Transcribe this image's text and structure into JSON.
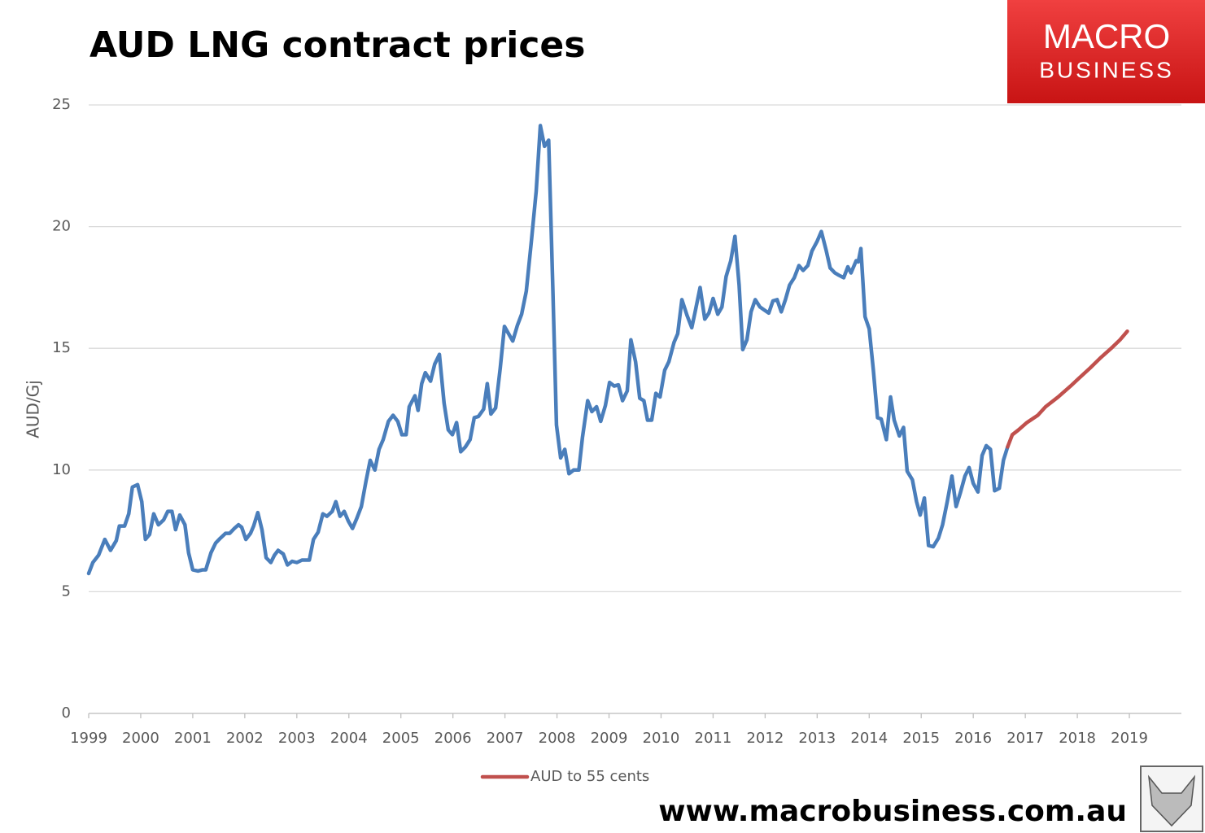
{
  "chart_data": {
    "type": "line",
    "title": "AUD LNG contract prices",
    "y_label": "AUD/Gj",
    "xlim": [
      1999,
      2020
    ],
    "xticks": [
      1999,
      2000,
      2001,
      2002,
      2003,
      2004,
      2005,
      2006,
      2007,
      2008,
      2009,
      2010,
      2011,
      2012,
      2013,
      2014,
      2015,
      2016,
      2017,
      2018,
      2019
    ],
    "ylim": [
      0,
      25
    ],
    "yticks": [
      0,
      5,
      10,
      15,
      20,
      25
    ],
    "grid": true,
    "legend": "bottom",
    "series": [
      {
        "color": "#4a7ebb",
        "x": [
          1999.0,
          1999.08,
          1999.19,
          1999.31,
          1999.42,
          1999.53,
          1999.59,
          1999.69,
          1999.77,
          1999.84,
          1999.94,
          2000.02,
          2000.09,
          2000.17,
          2000.25,
          2000.34,
          2000.44,
          2000.52,
          2000.6,
          2000.67,
          2000.75,
          2000.85,
          2000.92,
          2001.0,
          2001.1,
          2001.19,
          2001.25,
          2001.35,
          2001.44,
          2001.53,
          2001.63,
          2001.71,
          2001.8,
          2001.88,
          2001.94,
          2002.02,
          2002.11,
          2002.17,
          2002.25,
          2002.33,
          2002.41,
          2002.5,
          2002.57,
          2002.64,
          2002.74,
          2002.82,
          2002.91,
          2003.0,
          2003.1,
          2003.24,
          2003.32,
          2003.41,
          2003.5,
          2003.58,
          2003.68,
          2003.75,
          2003.83,
          2003.91,
          2003.99,
          2004.07,
          2004.15,
          2004.24,
          2004.33,
          2004.41,
          2004.5,
          2004.58,
          2004.66,
          2004.76,
          2004.85,
          2004.94,
          2005.02,
          2005.1,
          2005.16,
          2005.27,
          2005.33,
          2005.4,
          2005.47,
          2005.57,
          2005.65,
          2005.74,
          2005.83,
          2005.91,
          2005.99,
          2006.07,
          2006.15,
          2006.24,
          2006.33,
          2006.41,
          2006.49,
          2006.59,
          2006.66,
          2006.73,
          2006.82,
          2006.91,
          2006.99,
          2007.07,
          2007.15,
          2007.24,
          2007.32,
          2007.41,
          2007.51,
          2007.6,
          2007.68,
          2007.76,
          2007.84,
          2007.92,
          2007.99,
          2008.07,
          2008.15,
          2008.23,
          2008.32,
          2008.42,
          2008.49,
          2008.59,
          2008.67,
          2008.76,
          2008.84,
          2008.93,
          2009.01,
          2009.1,
          2009.18,
          2009.26,
          2009.35,
          2009.42,
          2009.51,
          2009.59,
          2009.67,
          2009.74,
          2009.82,
          2009.9,
          2009.98,
          2010.07,
          2010.15,
          2010.25,
          2010.32,
          2010.4,
          2010.5,
          2010.59,
          2010.65,
          2010.75,
          2010.84,
          2010.92,
          2011.0,
          2011.09,
          2011.17,
          2011.25,
          2011.34,
          2011.42,
          2011.5,
          2011.57,
          2011.65,
          2011.73,
          2011.81,
          2011.9,
          2012.0,
          2012.07,
          2012.15,
          2012.23,
          2012.31,
          2012.39,
          2012.47,
          2012.56,
          2012.65,
          2012.73,
          2012.82,
          2012.9,
          2013.0,
          2013.08,
          2013.17,
          2013.25,
          2013.34,
          2013.42,
          2013.51,
          2013.59,
          2013.65,
          2013.75,
          2013.79,
          2013.84,
          2013.92,
          2014.0,
          2014.08,
          2014.16,
          2014.23,
          2014.33,
          2014.41,
          2014.48,
          2014.58,
          2014.66,
          2014.73,
          2014.83,
          2014.91,
          2014.98,
          2015.06,
          2015.14,
          2015.23,
          2015.33,
          2015.41,
          2015.5,
          2015.59,
          2015.67,
          2015.75,
          2015.84,
          2015.92,
          2016.0,
          2016.09,
          2016.17,
          2016.25,
          2016.33,
          2016.41,
          2016.5,
          2016.58,
          2016.66
        ],
        "values": [
          5.75,
          6.2,
          6.5,
          7.15,
          6.7,
          7.1,
          7.7,
          7.7,
          8.2,
          9.3,
          9.4,
          8.7,
          7.15,
          7.35,
          8.2,
          7.75,
          7.95,
          8.3,
          8.3,
          7.55,
          8.15,
          7.75,
          6.6,
          5.9,
          5.85,
          5.9,
          5.9,
          6.6,
          7.0,
          7.2,
          7.4,
          7.4,
          7.6,
          7.75,
          7.65,
          7.15,
          7.4,
          7.7,
          8.25,
          7.55,
          6.4,
          6.2,
          6.5,
          6.7,
          6.55,
          6.1,
          6.25,
          6.2,
          6.3,
          6.3,
          7.15,
          7.45,
          8.2,
          8.1,
          8.3,
          8.7,
          8.1,
          8.3,
          7.9,
          7.6,
          8.0,
          8.5,
          9.55,
          10.4,
          10.0,
          10.85,
          11.25,
          12.0,
          12.25,
          12.0,
          11.45,
          11.45,
          12.6,
          13.05,
          12.45,
          13.55,
          14.0,
          13.65,
          14.35,
          14.75,
          12.75,
          11.65,
          11.45,
          11.95,
          10.75,
          10.95,
          11.25,
          12.15,
          12.2,
          12.5,
          13.55,
          12.3,
          12.55,
          14.2,
          15.9,
          15.6,
          15.3,
          15.95,
          16.4,
          17.35,
          19.45,
          21.45,
          24.15,
          23.3,
          23.55,
          17.45,
          11.85,
          10.5,
          10.85,
          9.85,
          10.0,
          10.0,
          11.35,
          12.85,
          12.4,
          12.6,
          12.0,
          12.65,
          13.6,
          13.45,
          13.5,
          12.85,
          13.25,
          15.35,
          14.45,
          12.95,
          12.85,
          12.05,
          12.05,
          13.15,
          13.0,
          14.1,
          14.45,
          15.25,
          15.6,
          17.0,
          16.35,
          15.85,
          16.45,
          17.5,
          16.2,
          16.45,
          17.05,
          16.4,
          16.7,
          17.95,
          18.6,
          19.6,
          17.6,
          14.95,
          15.35,
          16.5,
          17.0,
          16.7,
          16.55,
          16.45,
          16.95,
          17.0,
          16.5,
          17.0,
          17.6,
          17.9,
          18.4,
          18.2,
          18.4,
          19.0,
          19.4,
          19.8,
          19.05,
          18.3,
          18.1,
          18.0,
          17.9,
          18.35,
          18.1,
          18.6,
          18.55,
          19.1,
          16.3,
          15.8,
          14.1,
          12.15,
          12.1,
          11.25,
          13.0,
          12.05,
          11.4,
          11.75,
          9.95,
          9.6,
          8.7,
          8.15,
          8.85,
          6.9,
          6.85,
          7.2,
          7.75,
          8.7,
          9.75,
          8.5,
          9.05,
          9.75,
          10.1,
          9.45,
          9.1,
          10.6,
          11.0,
          10.85,
          9.15,
          9.25,
          10.4,
          10.95
        ]
      },
      {
        "name": "AUD to 55 cents",
        "color": "#c0504d",
        "x": [
          2016.66,
          2016.75,
          2016.87,
          2017.03,
          2017.24,
          2017.39,
          2017.63,
          2017.87,
          2018.02,
          2018.25,
          2018.44,
          2018.65,
          2018.82,
          2018.96
        ],
        "values": [
          10.95,
          11.45,
          11.65,
          11.95,
          12.25,
          12.6,
          13.0,
          13.45,
          13.75,
          14.2,
          14.6,
          15.0,
          15.35,
          15.7
        ]
      }
    ]
  },
  "branding": {
    "logo_line1": "MACRO",
    "logo_line2": "BUSINESS",
    "website": "www.macrobusiness.com.au"
  }
}
